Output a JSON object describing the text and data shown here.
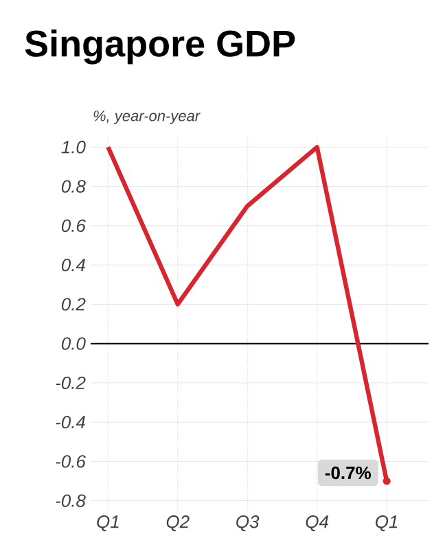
{
  "chart_data": {
    "type": "line",
    "title": "Singapore GDP",
    "ylabel": "%, year-on-year",
    "categories": [
      "Q1",
      "Q2",
      "Q3",
      "Q4",
      "Q1"
    ],
    "values": [
      1.0,
      0.2,
      0.7,
      1.0,
      -0.7
    ],
    "color": "#d7262e",
    "value_labels": [
      null,
      null,
      null,
      null,
      "-0.7%"
    ],
    "ylim": [
      -0.85,
      1.05
    ],
    "yticks": [
      {
        "value": -0.8,
        "label": "-0.8"
      },
      {
        "value": -0.6,
        "label": "-0.6"
      },
      {
        "value": -0.4,
        "label": "-0.4"
      },
      {
        "value": -0.2,
        "label": "-0.2"
      },
      {
        "value": 0,
        "label": "0.0"
      },
      {
        "value": 0.2,
        "label": "0.2"
      },
      {
        "value": 0.4,
        "label": "0.4"
      },
      {
        "value": 0.6,
        "label": "0.6"
      },
      {
        "value": 0.8,
        "label": "0.8"
      },
      {
        "value": 1.0,
        "label": "1.0"
      }
    ],
    "grid": true,
    "ref_lines": [
      {
        "axis": "y",
        "value": 0,
        "color": "#000000"
      }
    ]
  }
}
